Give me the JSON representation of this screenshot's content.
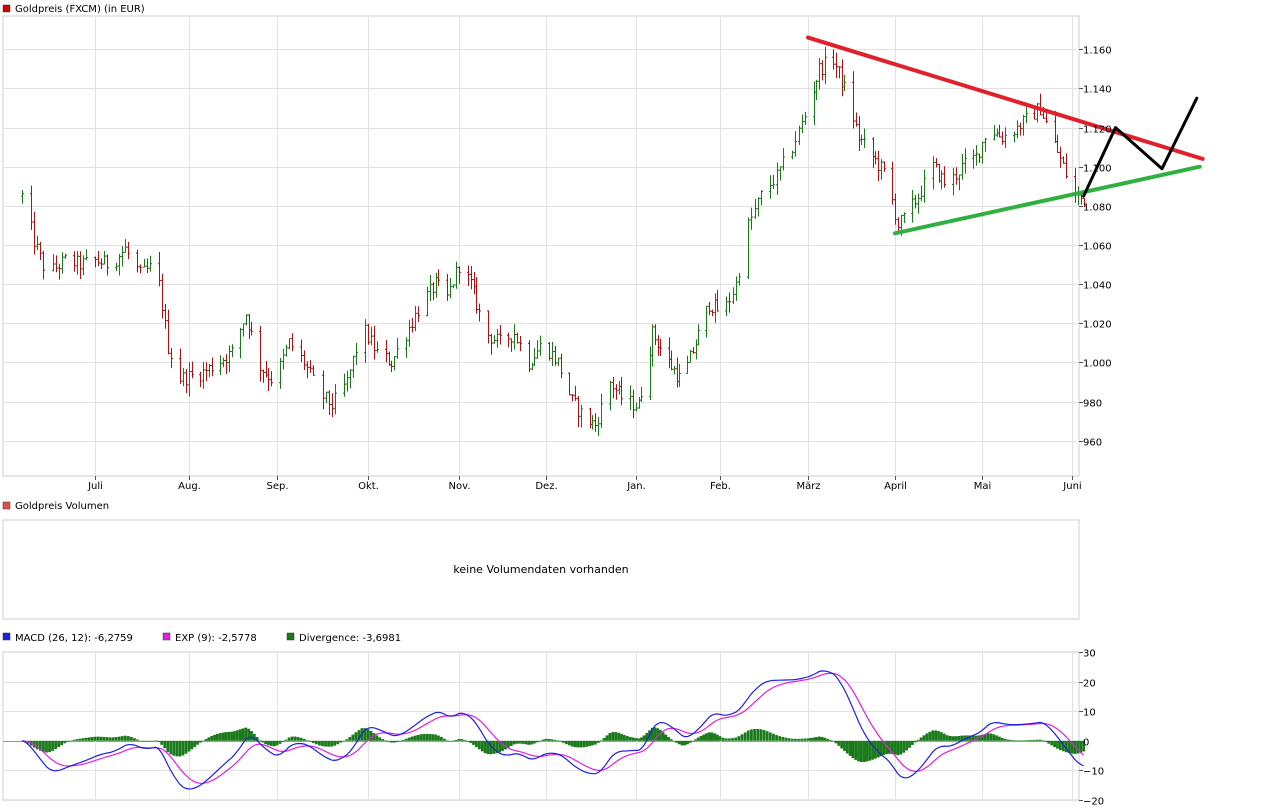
{
  "price_panel": {
    "legend_label": "Goldpreis (FXCM) (in EUR)",
    "legend_color": "#d40000",
    "up_color": "#1a7a1a",
    "down_color": "#b01010"
  },
  "volume_panel": {
    "legend_label": "Goldpreis Volumen",
    "legend_color": "#e05050",
    "message": "keine Volumendaten vorhanden"
  },
  "macd_panel": {
    "legends": [
      {
        "label": "MACD (26, 12): -6,2759",
        "color": "#2020e0"
      },
      {
        "label": "EXP (9): -2,5778",
        "color": "#e020e0"
      },
      {
        "label": "Divergence: -3,6981",
        "color": "#1a7a1a"
      }
    ]
  },
  "chart_data": [
    {
      "type": "ohlc",
      "title": "Goldpreis (FXCM) (in EUR)",
      "x_labels": [
        "Juli",
        "Aug.",
        "Sep.",
        "Okt.",
        "Nov.",
        "Dez.",
        "Jan.",
        "Feb.",
        "März",
        "April",
        "Mai",
        "Juni"
      ],
      "y_ticks": [
        960,
        980,
        1000,
        1020,
        1040,
        1060,
        1080,
        1100,
        1120,
        1140,
        1160
      ],
      "y_tick_labels": [
        "960",
        "980",
        "1.000",
        "1.020",
        "1.040",
        "1.060",
        "1.080",
        "1.100",
        "1.120",
        "1.140",
        "1.160"
      ],
      "ylim": [
        942,
        1177
      ],
      "month_start_day": [
        0,
        31,
        62,
        92,
        123,
        153,
        184,
        215,
        243,
        274,
        304,
        335
      ],
      "day_range": [
        -25,
        380
      ],
      "close_anchors": [
        [
          -24,
          1085
        ],
        [
          -20,
          1062
        ],
        [
          -16,
          1045
        ],
        [
          -10,
          1052
        ],
        [
          -5,
          1050
        ],
        [
          0,
          1052
        ],
        [
          5,
          1050
        ],
        [
          10,
          1058
        ],
        [
          15,
          1045
        ],
        [
          20,
          1050
        ],
        [
          24,
          1008
        ],
        [
          28,
          992
        ],
        [
          32,
          993
        ],
        [
          36,
          995
        ],
        [
          41,
          1000
        ],
        [
          46,
          1005
        ],
        [
          51,
          1025
        ],
        [
          56,
          998
        ],
        [
          61,
          990
        ],
        [
          66,
          1010
        ],
        [
          71,
          1000
        ],
        [
          76,
          984
        ],
        [
          80,
          978
        ],
        [
          85,
          990
        ],
        [
          90,
          1018
        ],
        [
          95,
          1005
        ],
        [
          100,
          1000
        ],
        [
          105,
          1015
        ],
        [
          110,
          1030
        ],
        [
          115,
          1040
        ],
        [
          119,
          1033
        ],
        [
          123,
          1050
        ],
        [
          127,
          1040
        ],
        [
          132,
          1015
        ],
        [
          137,
          1010
        ],
        [
          142,
          1015
        ],
        [
          147,
          1000
        ],
        [
          152,
          1010
        ],
        [
          157,
          1000
        ],
        [
          162,
          980
        ],
        [
          166,
          972
        ],
        [
          170,
          968
        ],
        [
          175,
          990
        ],
        [
          180,
          980
        ],
        [
          185,
          978
        ],
        [
          190,
          1015
        ],
        [
          196,
          1000
        ],
        [
          201,
          990
        ],
        [
          206,
          1010
        ],
        [
          211,
          1030
        ],
        [
          216,
          1025
        ],
        [
          220,
          1040
        ],
        [
          224,
          1070
        ],
        [
          228,
          1085
        ],
        [
          233,
          1095
        ],
        [
          238,
          1110
        ],
        [
          243,
          1130
        ],
        [
          247,
          1150
        ],
        [
          252,
          1155
        ],
        [
          256,
          1140
        ],
        [
          261,
          1115
        ],
        [
          266,
          1105
        ],
        [
          271,
          1095
        ],
        [
          275,
          1070
        ],
        [
          278,
          1075
        ],
        [
          282,
          1085
        ],
        [
          287,
          1100
        ],
        [
          292,
          1090
        ],
        [
          297,
          1100
        ],
        [
          302,
          1105
        ],
        [
          306,
          1120
        ],
        [
          311,
          1115
        ],
        [
          316,
          1120
        ],
        [
          320,
          1125
        ],
        [
          324,
          1130
        ],
        [
          328,
          1115
        ],
        [
          332,
          1100
        ],
        [
          336,
          1085
        ],
        [
          339,
          1083
        ]
      ],
      "annotations": [
        {
          "kind": "trendline",
          "color": "#e0202a",
          "from": [
            243,
            1166
          ],
          "to": [
            380,
            1104
          ]
        },
        {
          "kind": "trendline",
          "color": "#30b040",
          "from": [
            274,
            1066
          ],
          "to": [
            379,
            1100
          ]
        },
        {
          "kind": "projection",
          "color": "#000000",
          "points": [
            [
              339,
              1085
            ],
            [
              350,
              1120
            ],
            [
              366,
              1099
            ],
            [
              378,
              1135
            ]
          ]
        }
      ]
    },
    {
      "type": "line",
      "title": "MACD",
      "y_ticks": [
        -20,
        -10,
        0,
        10,
        20,
        30
      ],
      "ylim": [
        -20,
        30
      ],
      "series": [
        {
          "name": "MACD (26, 12): -6,2759",
          "color": "#2020e0"
        },
        {
          "name": "EXP (9): -2,5778",
          "color": "#e020e0"
        },
        {
          "name": "Divergence: -3,6981",
          "color": "#1a7a1a",
          "type": "bar"
        }
      ]
    }
  ]
}
